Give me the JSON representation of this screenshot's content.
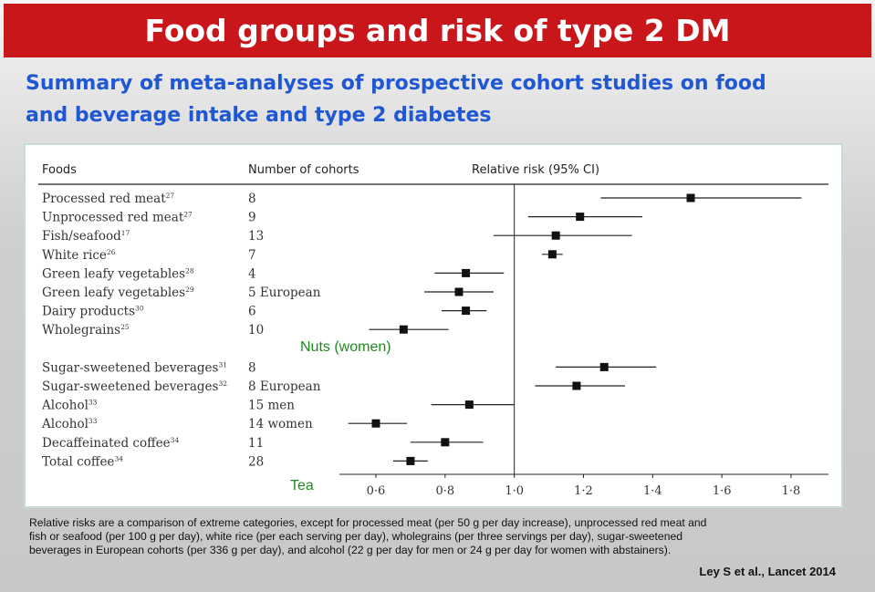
{
  "slide": {
    "title": "Food groups and risk of type 2 DM",
    "subtitle_line1": "Summary of meta-analyses of prospective cohort studies on food",
    "subtitle_line2": "and beverage intake and type 2 diabetes",
    "footnote_lines": [
      "Relative risks are a comparison of extreme categories, except for processed meat (per 50 g per day increase), unprocessed red meat and",
      "fish or seafood (per 100 g per day), white rice (per each serving per day), wholegrains (per three servings per day), sugar-sweetened",
      "beverages in European cohorts (per 336 g per day), and alcohol (22 g per day for men or 24 g per day for women with abstainers)."
    ],
    "citation": "Ley S et al., Lancet 2014",
    "colors": {
      "title_bar": "#c8161b",
      "subtitle": "#2057d4",
      "annotation": "#1f8a1f"
    }
  },
  "chart_data": {
    "type": "forest",
    "headers": {
      "foods": "Foods",
      "cohorts": "Number of cohorts",
      "risk": "Relative risk (95% CI)"
    },
    "reference_line": 1.0,
    "xlim": [
      0.5,
      1.9
    ],
    "x_ticks": [
      0.6,
      0.8,
      1.0,
      1.2,
      1.4,
      1.6,
      1.8
    ],
    "x_tick_labels": [
      "0·6",
      "0·8",
      "1·0",
      "1·2",
      "1·4",
      "1·6",
      "1·8"
    ],
    "groups": [
      {
        "rows": [
          {
            "food": "Processed red meat",
            "ref": "27",
            "cohorts": "8",
            "rr": 1.51,
            "lo": 1.25,
            "hi": 1.83
          },
          {
            "food": "Unprocessed red meat",
            "ref": "27",
            "cohorts": "9",
            "rr": 1.19,
            "lo": 1.04,
            "hi": 1.37
          },
          {
            "food": "Fish/seafood",
            "ref": "17",
            "cohorts": "13",
            "rr": 1.12,
            "lo": 0.94,
            "hi": 1.34
          },
          {
            "food": "White rice",
            "ref": "26",
            "cohorts": "7",
            "rr": 1.11,
            "lo": 1.08,
            "hi": 1.14
          },
          {
            "food": "Green leafy vegetables",
            "ref": "28",
            "cohorts": "4",
            "rr": 0.86,
            "lo": 0.77,
            "hi": 0.97
          },
          {
            "food": "Green leafy vegetables",
            "ref": "29",
            "cohorts": "5 European",
            "rr": 0.84,
            "lo": 0.74,
            "hi": 0.94
          },
          {
            "food": "Dairy products",
            "ref": "30",
            "cohorts": "6",
            "rr": 0.86,
            "lo": 0.79,
            "hi": 0.92
          },
          {
            "food": "Wholegrains",
            "ref": "25",
            "cohorts": "10",
            "rr": 0.68,
            "lo": 0.58,
            "hi": 0.81
          }
        ]
      },
      {
        "rows": [
          {
            "food": "Sugar-sweetened beverages",
            "ref": "31",
            "cohorts": "8",
            "rr": 1.26,
            "lo": 1.12,
            "hi": 1.41
          },
          {
            "food": "Sugar-sweetened beverages",
            "ref": "32",
            "cohorts": "8 European",
            "rr": 1.18,
            "lo": 1.06,
            "hi": 1.32
          },
          {
            "food": "Alcohol",
            "ref": "33",
            "cohorts": "15 men",
            "rr": 0.87,
            "lo": 0.76,
            "hi": 1.0
          },
          {
            "food": "Alcohol",
            "ref": "33",
            "cohorts": "14 women",
            "rr": 0.6,
            "lo": 0.52,
            "hi": 0.69
          },
          {
            "food": "Decaffeinated coffee",
            "ref": "34",
            "cohorts": "11",
            "rr": 0.8,
            "lo": 0.7,
            "hi": 0.91
          },
          {
            "food": "Total coffee",
            "ref": "34",
            "cohorts": "28",
            "rr": 0.7,
            "lo": 0.65,
            "hi": 0.75
          }
        ]
      }
    ],
    "annotations": [
      "Nuts (women)",
      "Tea"
    ]
  }
}
